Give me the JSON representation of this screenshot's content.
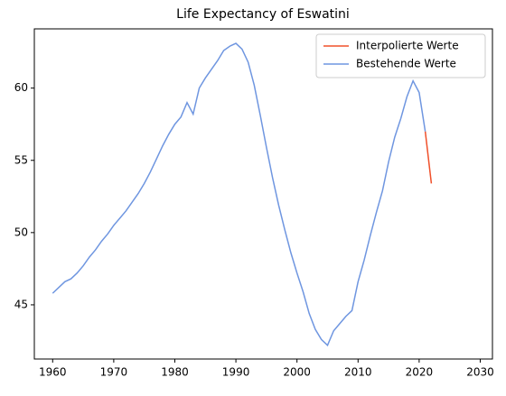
{
  "chart_data": {
    "type": "line",
    "title": "Life Expectancy of Eswatini",
    "x": [
      1960,
      1961,
      1962,
      1963,
      1964,
      1965,
      1966,
      1967,
      1968,
      1969,
      1970,
      1971,
      1972,
      1973,
      1974,
      1975,
      1976,
      1977,
      1978,
      1979,
      1980,
      1981,
      1982,
      1983,
      1984,
      1985,
      1986,
      1987,
      1988,
      1989,
      1990,
      1991,
      1992,
      1993,
      1994,
      1995,
      1996,
      1997,
      1998,
      1999,
      2000,
      2001,
      2002,
      2003,
      2004,
      2005,
      2006,
      2007,
      2008,
      2009,
      2010,
      2011,
      2012,
      2013,
      2014,
      2015,
      2016,
      2017,
      2018,
      2019,
      2020,
      2021,
      2022
    ],
    "series": [
      {
        "name": "Interpolierte Werte",
        "color": "#f0502a",
        "values": [
          null,
          null,
          null,
          null,
          null,
          null,
          null,
          null,
          null,
          null,
          null,
          null,
          null,
          null,
          null,
          null,
          null,
          null,
          null,
          null,
          null,
          null,
          null,
          null,
          null,
          null,
          null,
          null,
          null,
          null,
          null,
          null,
          null,
          null,
          null,
          null,
          null,
          null,
          null,
          null,
          null,
          null,
          null,
          null,
          null,
          null,
          null,
          null,
          null,
          null,
          null,
          null,
          null,
          null,
          null,
          null,
          null,
          null,
          null,
          null,
          null,
          57.0,
          53.4
        ]
      },
      {
        "name": "Bestehende Werte",
        "color": "#6f96e0",
        "values": [
          45.8,
          46.2,
          46.6,
          46.8,
          47.2,
          47.7,
          48.3,
          48.8,
          49.4,
          49.9,
          50.5,
          51.0,
          51.5,
          52.1,
          52.7,
          53.4,
          54.2,
          55.1,
          56.0,
          56.8,
          57.5,
          58.0,
          59.0,
          58.2,
          60.0,
          60.7,
          61.3,
          61.9,
          62.6,
          62.9,
          63.1,
          62.7,
          61.8,
          60.2,
          58.1,
          55.9,
          53.8,
          51.9,
          50.2,
          48.6,
          47.2,
          45.9,
          44.4,
          43.3,
          42.6,
          42.2,
          43.2,
          43.7,
          44.2,
          44.6,
          46.6,
          48.1,
          49.8,
          51.4,
          52.9,
          54.9,
          56.6,
          57.9,
          59.4,
          60.5,
          59.7,
          57.0,
          null
        ]
      }
    ],
    "xlim": [
      1957,
      2032
    ],
    "ylim": [
      41.25,
      64.1
    ],
    "xticks": [
      1960,
      1970,
      1980,
      1990,
      2000,
      2010,
      2020,
      2030
    ],
    "yticks": [
      45,
      50,
      55,
      60
    ],
    "legend": "upper right"
  }
}
